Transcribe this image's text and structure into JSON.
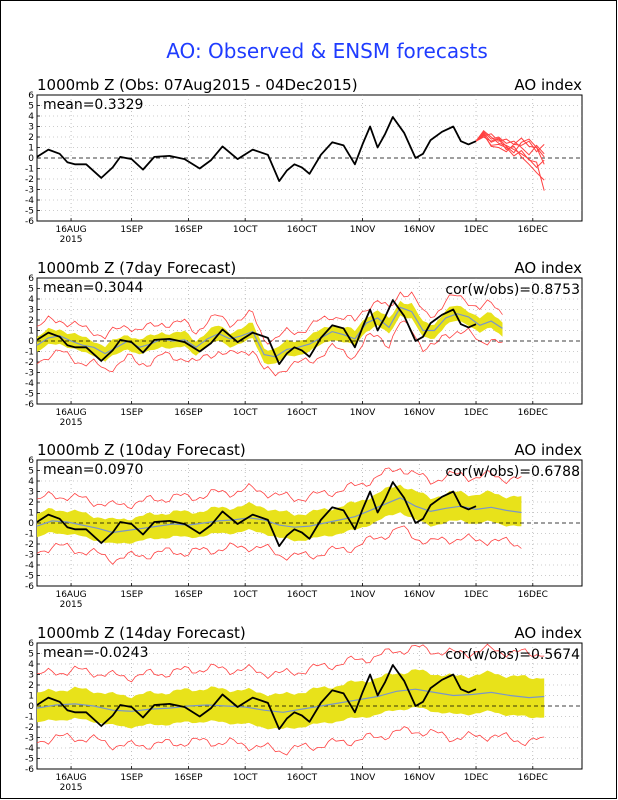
{
  "figure": {
    "title": "AO: Observed & ENSM forecasts",
    "colors": {
      "background": "#ffffff",
      "title": "#1f3cff",
      "observed": "#000000",
      "forecast_members": "#ff4040",
      "spread_band": "#e8e21a",
      "ensemble_mean": "#7a96c8",
      "grid": "#9a9a9a"
    }
  },
  "chart_data": [
    {
      "type": "line",
      "title": "1000mb Z (Obs: 07Aug2015 - 04Dec2015)",
      "right_label": "AO index",
      "mean_label": "mean=0.3329",
      "cor_label": "",
      "ylim": [
        -6,
        6
      ],
      "y_ticks": [
        -6,
        -5,
        -4,
        -3,
        -2,
        -1,
        0,
        1,
        2,
        3,
        4,
        5,
        6
      ],
      "x_range_days": [
        -9,
        135
      ],
      "x_ticks": [
        {
          "day": 0,
          "label": "16AUG",
          "sub": "2015"
        },
        {
          "day": 16,
          "label": "1SEP"
        },
        {
          "day": 31,
          "label": "16SEP"
        },
        {
          "day": 46,
          "label": "1OCT"
        },
        {
          "day": 61,
          "label": "16OCT"
        },
        {
          "day": 77,
          "label": "1NOV"
        },
        {
          "day": 92,
          "label": "16NOV"
        },
        {
          "day": 107,
          "label": "1DEC"
        },
        {
          "day": 122,
          "label": "16DEC"
        }
      ],
      "grid": true,
      "zero_line": "dashed",
      "observed": {
        "x": [
          -9,
          -6,
          -3,
          -1,
          1,
          4,
          8,
          11,
          13,
          16,
          19,
          22,
          26,
          30,
          34,
          37,
          40,
          44,
          48,
          52,
          55,
          57,
          59,
          61,
          63,
          66,
          69,
          72,
          75,
          77,
          79,
          81,
          83,
          85,
          88,
          91,
          93,
          95,
          98,
          101,
          103,
          105,
          107
        ],
        "y": [
          0.1,
          0.8,
          0.4,
          -0.4,
          -0.6,
          -0.6,
          -1.9,
          -0.9,
          0.1,
          -0.1,
          -1.1,
          0.1,
          0.2,
          -0.1,
          -1.0,
          -0.2,
          1.1,
          -0.1,
          0.8,
          0.3,
          -2.2,
          -1.2,
          -0.6,
          -0.9,
          -1.5,
          0.3,
          1.5,
          1.2,
          -0.6,
          1.3,
          3.0,
          1.0,
          2.3,
          3.9,
          2.4,
          0.0,
          0.4,
          1.7,
          2.5,
          3.0,
          1.6,
          1.3,
          1.6
        ]
      },
      "forecast_members": [
        {
          "x": [
            107,
            109,
            111,
            113,
            115,
            117,
            119,
            121,
            123,
            125
          ],
          "y": [
            1.6,
            2.4,
            1.5,
            1.8,
            0.8,
            1.1,
            0.1,
            -0.6,
            -1.4,
            -2.1
          ]
        },
        {
          "x": [
            107,
            109,
            111,
            113,
            115,
            117,
            119,
            121,
            123,
            125
          ],
          "y": [
            1.6,
            2.2,
            1.2,
            1.3,
            1.0,
            0.2,
            0.7,
            -0.2,
            -0.4,
            -3.1
          ]
        },
        {
          "x": [
            107,
            109,
            111,
            113,
            115,
            117,
            119,
            121,
            123,
            125
          ],
          "y": [
            1.6,
            2.5,
            1.8,
            2.0,
            1.4,
            1.6,
            1.0,
            0.3,
            1.2,
            0.4
          ]
        },
        {
          "x": [
            107,
            109,
            111,
            113,
            115,
            117,
            119,
            121,
            123,
            125
          ],
          "y": [
            1.6,
            2.1,
            2.3,
            1.6,
            1.8,
            1.3,
            1.2,
            1.6,
            0.6,
            1.3
          ]
        },
        {
          "x": [
            107,
            109,
            111,
            113,
            115,
            117,
            119,
            121,
            123,
            125
          ],
          "y": [
            1.6,
            2.3,
            1.1,
            1.0,
            0.6,
            1.3,
            1.9,
            1.1,
            1.0,
            -0.6
          ]
        },
        {
          "x": [
            107,
            109,
            111,
            113,
            115,
            117,
            119,
            121,
            123,
            125
          ],
          "y": [
            1.6,
            2.6,
            2.0,
            1.4,
            1.2,
            0.8,
            0.4,
            -0.1,
            -0.9,
            -0.2
          ]
        },
        {
          "x": [
            107,
            109,
            111,
            113,
            115,
            117,
            119,
            121,
            123,
            125
          ],
          "y": [
            1.6,
            2.0,
            1.6,
            1.9,
            1.1,
            0.5,
            1.5,
            1.8,
            1.0,
            0.1
          ]
        }
      ],
      "band": null,
      "ens_mean": null
    },
    {
      "type": "line",
      "title": "1000mb Z (7day Forecast)",
      "right_label": "AO index",
      "mean_label": "mean=0.3044",
      "cor_label": "cor(w/obs)=0.8753",
      "ylim": [
        -6,
        6
      ],
      "y_ticks": [
        -6,
        -5,
        -4,
        -3,
        -2,
        -1,
        0,
        1,
        2,
        3,
        4,
        5,
        6
      ],
      "x_range_days": [
        -9,
        135
      ],
      "x_ticks": [
        {
          "day": 0,
          "label": "16AUG",
          "sub": "2015"
        },
        {
          "day": 16,
          "label": "1SEP"
        },
        {
          "day": 31,
          "label": "16SEP"
        },
        {
          "day": 46,
          "label": "1OCT"
        },
        {
          "day": 61,
          "label": "16OCT"
        },
        {
          "day": 77,
          "label": "1NOV"
        },
        {
          "day": 92,
          "label": "16NOV"
        },
        {
          "day": 107,
          "label": "1DEC"
        },
        {
          "day": 122,
          "label": "16DEC"
        }
      ],
      "grid": true,
      "zero_line": "dashed",
      "observed": {
        "x": [
          -9,
          -6,
          -3,
          -1,
          1,
          4,
          8,
          11,
          13,
          16,
          19,
          22,
          26,
          30,
          34,
          37,
          40,
          44,
          48,
          52,
          55,
          57,
          59,
          61,
          63,
          66,
          69,
          72,
          75,
          77,
          79,
          81,
          83,
          85,
          88,
          91,
          93,
          95,
          98,
          101,
          103,
          105,
          107
        ],
        "y": [
          0.1,
          0.8,
          0.4,
          -0.4,
          -0.6,
          -0.6,
          -1.9,
          -0.9,
          0.1,
          -0.1,
          -1.1,
          0.1,
          0.2,
          -0.1,
          -1.0,
          -0.2,
          1.1,
          -0.1,
          0.8,
          0.3,
          -2.2,
          -1.2,
          -0.6,
          -0.9,
          -1.5,
          0.3,
          1.5,
          1.2,
          -0.6,
          1.3,
          3.0,
          1.0,
          2.3,
          3.9,
          2.4,
          0.0,
          0.4,
          1.7,
          2.5,
          3.0,
          1.6,
          1.3,
          1.6
        ]
      },
      "ens_mean": {
        "x": [
          -9,
          -6,
          -3,
          0,
          3,
          6,
          9,
          12,
          15,
          18,
          21,
          24,
          27,
          30,
          33,
          36,
          39,
          42,
          45,
          48,
          51,
          54,
          57,
          60,
          63,
          66,
          69,
          72,
          75,
          78,
          81,
          84,
          87,
          90,
          93,
          96,
          99,
          102,
          105,
          108,
          111,
          114
        ],
        "y": [
          -0.4,
          0.3,
          0.5,
          0.0,
          -0.4,
          -0.6,
          -1.2,
          -0.6,
          0.0,
          -0.6,
          -0.3,
          0.2,
          0.0,
          0.1,
          -0.6,
          0.2,
          0.7,
          0.2,
          0.5,
          0.9,
          -1.3,
          -1.5,
          -0.8,
          -0.6,
          -0.3,
          0.3,
          0.9,
          0.6,
          0.2,
          1.7,
          2.2,
          1.3,
          3.2,
          2.8,
          1.0,
          1.0,
          2.2,
          2.6,
          2.3,
          1.5,
          1.9,
          1.2
        ]
      },
      "band": {
        "x_from": -9,
        "x_to": 114,
        "half_width": [
          0.7,
          0.7
        ],
        "outer_extra": [
          0.9,
          0.9
        ]
      },
      "forecast_members": []
    },
    {
      "type": "line",
      "title": "1000mb Z (10day Forecast)",
      "right_label": "AO index",
      "mean_label": "mean=0.0970",
      "cor_label": "cor(w/obs)=0.6788",
      "ylim": [
        -6,
        6
      ],
      "y_ticks": [
        -6,
        -5,
        -4,
        -3,
        -2,
        -1,
        0,
        1,
        2,
        3,
        4,
        5,
        6
      ],
      "x_range_days": [
        -9,
        135
      ],
      "x_ticks": [
        {
          "day": 0,
          "label": "16AUG",
          "sub": "2015"
        },
        {
          "day": 16,
          "label": "1SEP"
        },
        {
          "day": 31,
          "label": "16SEP"
        },
        {
          "day": 46,
          "label": "1OCT"
        },
        {
          "day": 61,
          "label": "16OCT"
        },
        {
          "day": 77,
          "label": "1NOV"
        },
        {
          "day": 92,
          "label": "16NOV"
        },
        {
          "day": 107,
          "label": "1DEC"
        },
        {
          "day": 122,
          "label": "16DEC"
        }
      ],
      "grid": true,
      "zero_line": "dashed",
      "observed": {
        "x": [
          -9,
          -6,
          -3,
          -1,
          1,
          4,
          8,
          11,
          13,
          16,
          19,
          22,
          26,
          30,
          34,
          37,
          40,
          44,
          48,
          52,
          55,
          57,
          59,
          61,
          63,
          66,
          69,
          72,
          75,
          77,
          79,
          81,
          83,
          85,
          88,
          91,
          93,
          95,
          98,
          101,
          103,
          105,
          107
        ],
        "y": [
          0.1,
          0.8,
          0.4,
          -0.4,
          -0.6,
          -0.6,
          -1.9,
          -0.9,
          0.1,
          -0.1,
          -1.1,
          0.1,
          0.2,
          -0.1,
          -1.0,
          -0.2,
          1.1,
          -0.1,
          0.8,
          0.3,
          -2.2,
          -1.2,
          -0.6,
          -0.9,
          -1.5,
          0.3,
          1.5,
          1.2,
          -0.6,
          1.3,
          3.0,
          1.0,
          2.3,
          3.9,
          2.4,
          0.0,
          0.4,
          1.7,
          2.5,
          3.0,
          1.6,
          1.3,
          1.6
        ]
      },
      "ens_mean": {
        "x": [
          -9,
          -5,
          -1,
          3,
          7,
          11,
          15,
          19,
          23,
          27,
          31,
          35,
          39,
          43,
          47,
          51,
          55,
          59,
          63,
          67,
          71,
          75,
          79,
          83,
          87,
          91,
          95,
          99,
          103,
          107,
          111,
          115,
          119
        ],
        "y": [
          -0.3,
          0.2,
          0.1,
          -0.2,
          -0.5,
          -0.9,
          -0.7,
          -0.5,
          -0.3,
          -0.1,
          -0.2,
          0.0,
          0.2,
          0.3,
          0.5,
          0.3,
          -0.2,
          -0.4,
          -0.3,
          0.0,
          0.3,
          0.6,
          1.2,
          1.8,
          2.4,
          1.6,
          1.1,
          1.4,
          1.6,
          1.3,
          1.5,
          1.2,
          1.0
        ]
      },
      "band": {
        "x_from": -9,
        "x_to": 119,
        "half_width": [
          1.1,
          1.4
        ],
        "outer_extra": [
          1.3,
          1.7
        ]
      },
      "forecast_members": []
    },
    {
      "type": "line",
      "title": "1000mb Z (14day Forecast)",
      "right_label": "AO index",
      "mean_label": "mean=-0.0243",
      "cor_label": "cor(w/obs)=0.5674",
      "ylim": [
        -6,
        6
      ],
      "y_ticks": [
        -6,
        -5,
        -4,
        -3,
        -2,
        -1,
        0,
        1,
        2,
        3,
        4,
        5,
        6
      ],
      "x_range_days": [
        -9,
        135
      ],
      "x_ticks": [
        {
          "day": 0,
          "label": "16AUG",
          "sub": "2015"
        },
        {
          "day": 16,
          "label": "1SEP"
        },
        {
          "day": 31,
          "label": "16SEP"
        },
        {
          "day": 46,
          "label": "1OCT"
        },
        {
          "day": 61,
          "label": "16OCT"
        },
        {
          "day": 77,
          "label": "1NOV"
        },
        {
          "day": 92,
          "label": "16NOV"
        },
        {
          "day": 107,
          "label": "1DEC"
        },
        {
          "day": 122,
          "label": "16DEC"
        }
      ],
      "grid": true,
      "zero_line": "dashed",
      "observed": {
        "x": [
          -9,
          -6,
          -3,
          -1,
          1,
          4,
          8,
          11,
          13,
          16,
          19,
          22,
          26,
          30,
          34,
          37,
          40,
          44,
          48,
          52,
          55,
          57,
          59,
          61,
          63,
          66,
          69,
          72,
          75,
          77,
          79,
          81,
          83,
          85,
          88,
          91,
          93,
          95,
          98,
          101,
          103,
          105,
          107
        ],
        "y": [
          0.1,
          0.8,
          0.4,
          -0.4,
          -0.6,
          -0.6,
          -1.9,
          -0.9,
          0.1,
          -0.1,
          -1.1,
          0.1,
          0.2,
          -0.1,
          -1.0,
          -0.2,
          1.1,
          -0.1,
          0.8,
          0.3,
          -2.2,
          -1.2,
          -0.6,
          -0.9,
          -1.5,
          0.3,
          1.5,
          1.2,
          -0.6,
          1.3,
          3.0,
          1.0,
          2.3,
          3.9,
          2.4,
          0.0,
          0.4,
          1.7,
          2.5,
          3.0,
          1.6,
          1.3,
          1.6
        ]
      },
      "ens_mean": {
        "x": [
          -9,
          -4,
          1,
          6,
          11,
          16,
          21,
          26,
          31,
          36,
          41,
          46,
          51,
          56,
          61,
          66,
          71,
          76,
          81,
          86,
          91,
          96,
          101,
          106,
          111,
          116,
          121,
          125
        ],
        "y": [
          -0.2,
          0.1,
          0.2,
          0.0,
          -0.4,
          -0.5,
          -0.3,
          -0.2,
          0.0,
          0.1,
          0.0,
          -0.1,
          -0.4,
          -0.6,
          -0.3,
          0.0,
          0.3,
          0.6,
          0.9,
          1.4,
          1.6,
          1.3,
          1.0,
          1.1,
          1.3,
          1.0,
          0.8,
          0.9
        ]
      },
      "band": {
        "x_from": -9,
        "x_to": 125,
        "half_width": [
          1.4,
          1.9
        ],
        "outer_extra": [
          1.7,
          2.3
        ]
      },
      "forecast_members": []
    }
  ]
}
